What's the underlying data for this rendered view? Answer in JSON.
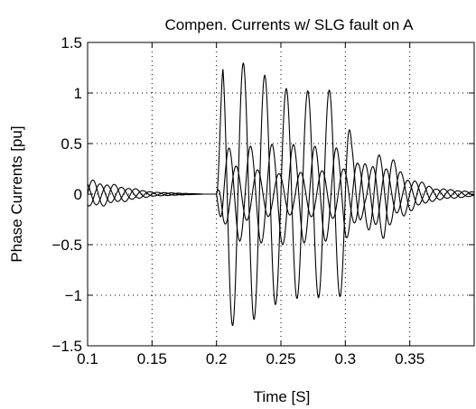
{
  "chart_data": {
    "type": "line",
    "title": "Compen. Currents w/ SLG fault on A",
    "xlabel": "Time [S]",
    "ylabel": "Phase Currents [pu]",
    "xlim": [
      0.1,
      0.4
    ],
    "ylim": [
      -1.5,
      1.5
    ],
    "xticks": [
      0.1,
      0.15,
      0.2,
      0.25,
      0.3,
      0.35
    ],
    "xtick_labels": [
      "0.1",
      "0.15",
      "0.2",
      "0.25",
      "0.3",
      "0.35"
    ],
    "yticks": [
      -1.5,
      -1,
      -0.5,
      0,
      0.5,
      1,
      1.5
    ],
    "ytick_labels": [
      "−1.5",
      "−1",
      "−0.5",
      "0",
      "0.5",
      "1",
      "1.5"
    ],
    "grid": true,
    "line_color": "#000000",
    "fundamental_hz": 60,
    "series": [
      {
        "points": [
          [
            0.1,
            0.15
          ],
          [
            0.15,
            0.02
          ],
          [
            0.19,
            0.0
          ],
          [
            0.2,
            0.0
          ],
          [
            0.205,
            1.3
          ],
          [
            0.22,
            1.3
          ],
          [
            0.235,
            1.2
          ],
          [
            0.25,
            1.05
          ],
          [
            0.27,
            1.02
          ],
          [
            0.29,
            1.03
          ],
          [
            0.3,
            1.0
          ],
          [
            0.305,
            0.5
          ],
          [
            0.315,
            0.15
          ],
          [
            0.33,
            0.45
          ],
          [
            0.35,
            0.15
          ],
          [
            0.37,
            0.05
          ],
          [
            0.4,
            0.02
          ]
        ],
        "phase_deg": 0
      },
      {
        "points": [
          [
            0.1,
            0.12
          ],
          [
            0.15,
            0.02
          ],
          [
            0.19,
            0.0
          ],
          [
            0.2,
            0.0
          ],
          [
            0.205,
            0.3
          ],
          [
            0.25,
            0.2
          ],
          [
            0.3,
            0.25
          ],
          [
            0.31,
            0.3
          ],
          [
            0.325,
            0.3
          ],
          [
            0.345,
            0.15
          ],
          [
            0.37,
            0.06
          ],
          [
            0.4,
            0.02
          ]
        ],
        "phase_deg": 120
      },
      {
        "points": [
          [
            0.1,
            0.12
          ],
          [
            0.15,
            0.02
          ],
          [
            0.19,
            0.0
          ],
          [
            0.2,
            0.0
          ],
          [
            0.205,
            0.45
          ],
          [
            0.25,
            0.5
          ],
          [
            0.3,
            0.45
          ],
          [
            0.31,
            0.3
          ],
          [
            0.325,
            0.4
          ],
          [
            0.345,
            0.2
          ],
          [
            0.37,
            0.06
          ],
          [
            0.4,
            0.02
          ]
        ],
        "phase_deg": 240
      }
    ]
  }
}
